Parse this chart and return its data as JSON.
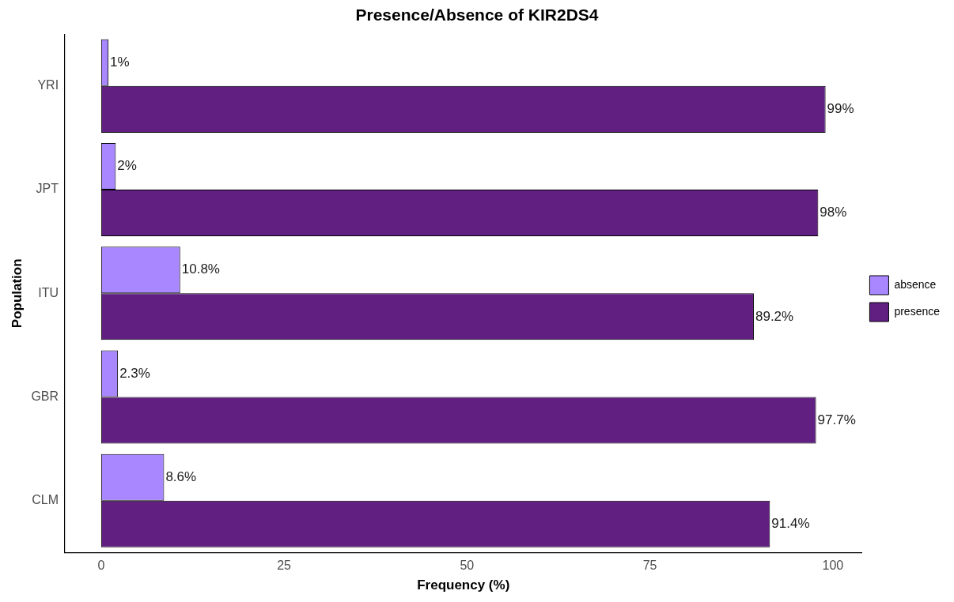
{
  "chart_data": {
    "type": "bar",
    "orientation": "horizontal",
    "title": "Presence/Absence of KIR2DS4",
    "xlabel": "Frequency (%)",
    "ylabel": "Population",
    "categories": [
      "YRI",
      "JPT",
      "ITU",
      "GBR",
      "CLM"
    ],
    "series": [
      {
        "name": "absence",
        "color": "#a987ff",
        "values": [
          1,
          2,
          10.8,
          2.3,
          8.6
        ],
        "value_labels": [
          "1%",
          "2%",
          "10.8%",
          "2.3%",
          "8.6%"
        ]
      },
      {
        "name": "presence",
        "color": "#611f82",
        "values": [
          99,
          98,
          89.2,
          97.7,
          91.4
        ],
        "value_labels": [
          "99%",
          "98%",
          "89.2%",
          "97.7%",
          "91.4%"
        ]
      }
    ],
    "xlim": [
      -4.95,
      103.95
    ],
    "xticks": [
      0,
      25,
      50,
      75,
      100
    ],
    "grid": false,
    "legend": "right"
  }
}
